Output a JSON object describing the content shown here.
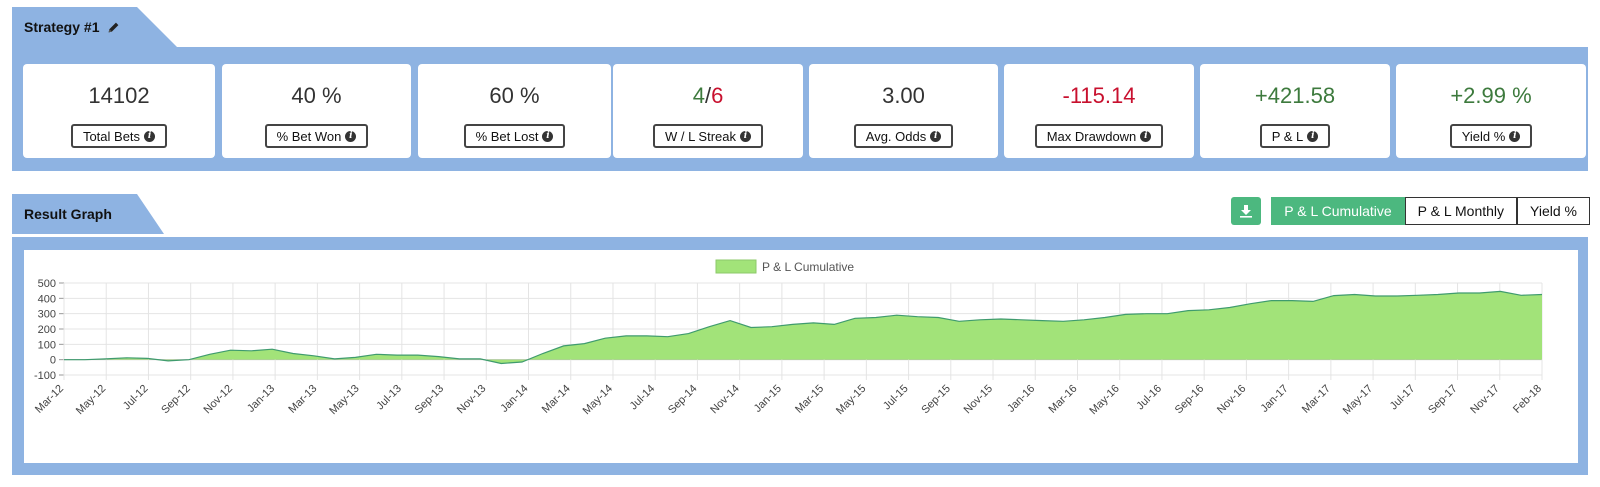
{
  "strategy": {
    "title": "Strategy #1",
    "edit_icon": "pencil-icon"
  },
  "stats": [
    {
      "name": "total-bets",
      "value": "14102",
      "label": "Total Bets"
    },
    {
      "name": "pct-bet-won",
      "value": "40 %",
      "label": "% Bet Won"
    },
    {
      "name": "pct-bet-lost",
      "value": "60 %",
      "label": "% Bet Lost"
    },
    {
      "name": "wl-streak",
      "win": "4",
      "sep": "/",
      "loss": "6",
      "label": "W / L Streak"
    },
    {
      "name": "avg-odds",
      "value": "3.00",
      "label": "Avg. Odds"
    },
    {
      "name": "max-drawdown",
      "value": "-115.14",
      "label": "Max Drawdown"
    },
    {
      "name": "pl",
      "value": "+421.58",
      "label": "P & L"
    },
    {
      "name": "yield",
      "value": "+2.99 %",
      "label": "Yield %"
    }
  ],
  "colors": {
    "panel": "#8eb3e2",
    "green": "#3d7a3d",
    "red": "#c8102e",
    "accent": "#4cb87f",
    "area_fill": "#a2e379",
    "area_stroke": "#3f9b6e"
  },
  "result_graph": {
    "title": "Result Graph",
    "download_icon": "download-icon",
    "toggles": [
      "P & L Cumulative",
      "P & L Monthly",
      "Yield %"
    ],
    "active_toggle": "P & L Cumulative"
  },
  "chart_data": {
    "type": "area",
    "legend": "P & L Cumulative",
    "legend_position": "top-center",
    "grid": true,
    "ylim": [
      -100,
      500
    ],
    "yticks": [
      -100,
      0,
      100,
      200,
      300,
      400,
      500
    ],
    "xtick_labels": [
      "Mar-12",
      "May-12",
      "Jul-12",
      "Sep-12",
      "Nov-12",
      "Jan-13",
      "Mar-13",
      "May-13",
      "Jul-13",
      "Sep-13",
      "Nov-13",
      "Jan-14",
      "Mar-14",
      "May-14",
      "Jul-14",
      "Sep-14",
      "Nov-14",
      "Jan-15",
      "Mar-15",
      "May-15",
      "Jul-15",
      "Sep-15",
      "Nov-15",
      "Jan-16",
      "Mar-16",
      "May-16",
      "Jul-16",
      "Sep-16",
      "Nov-16",
      "Jan-17",
      "Mar-17",
      "May-17",
      "Jul-17",
      "Sep-17",
      "Nov-17",
      "Feb-18"
    ],
    "series": [
      {
        "name": "P & L Cumulative",
        "values": [
          0,
          0,
          5,
          12,
          8,
          -8,
          0,
          35,
          62,
          58,
          68,
          40,
          25,
          5,
          15,
          35,
          30,
          30,
          20,
          5,
          5,
          -25,
          -15,
          40,
          90,
          105,
          140,
          155,
          155,
          150,
          170,
          215,
          255,
          210,
          215,
          230,
          240,
          230,
          270,
          275,
          290,
          280,
          275,
          250,
          260,
          265,
          260,
          255,
          250,
          260,
          275,
          295,
          300,
          300,
          320,
          325,
          340,
          365,
          385,
          385,
          380,
          418,
          425,
          415,
          415,
          420,
          425,
          435,
          435,
          445,
          420,
          425
        ]
      }
    ]
  }
}
